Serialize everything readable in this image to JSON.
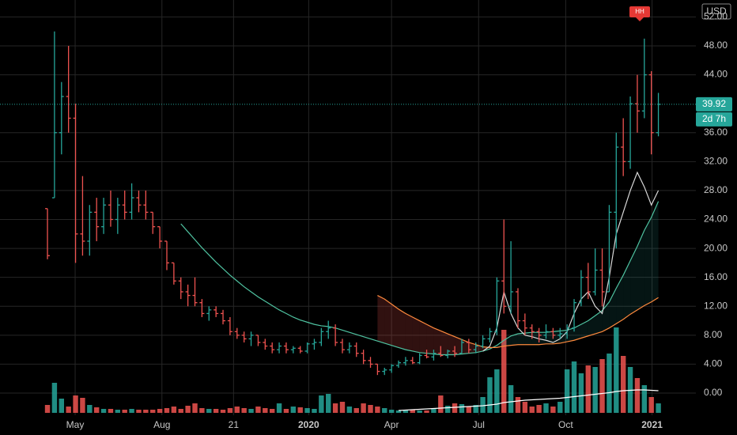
{
  "chart_data": {
    "type": "ohlc",
    "currency": "USD",
    "countdown": "2d 7h",
    "marker": "HH",
    "last_price": 39.92,
    "up_color": "#26a69a",
    "down_color": "#ef5350",
    "grid": true,
    "xlim": [
      -6.76,
      92.34
    ],
    "ylim": [
      -3.06,
      54.34
    ],
    "xticks": [
      {
        "value": 3.94,
        "label": "May"
      },
      {
        "value": 16.3,
        "label": "Aug"
      },
      {
        "value": 26.5,
        "label": "21"
      },
      {
        "value": 37.2,
        "label": "2020"
      },
      {
        "value": 49,
        "label": "Apr"
      },
      {
        "value": 61.4,
        "label": "Jul"
      },
      {
        "value": 73.8,
        "label": "Oct"
      },
      {
        "value": 86.1,
        "label": "2021"
      }
    ],
    "yticks": [
      {
        "value": 0,
        "label": "0.00"
      },
      {
        "value": 4,
        "label": "4.00"
      },
      {
        "value": 8,
        "label": "8.00"
      },
      {
        "value": 12,
        "label": "12.00"
      },
      {
        "value": 16,
        "label": "16.00"
      },
      {
        "value": 20,
        "label": "20.00"
      },
      {
        "value": 24,
        "label": "24.00"
      },
      {
        "value": 28,
        "label": "28.00"
      },
      {
        "value": 32,
        "label": "32.00"
      },
      {
        "value": 36,
        "label": "36.00"
      },
      {
        "value": 44,
        "label": "44.00"
      },
      {
        "value": 48,
        "label": "48.00"
      },
      {
        "value": 52,
        "label": "52.00"
      }
    ],
    "open": [
      25.5,
      27,
      36,
      41,
      38,
      22,
      21,
      25,
      23,
      26,
      24,
      26,
      25,
      27,
      26,
      25,
      23,
      21,
      18,
      15.5,
      14,
      13.5,
      12.5,
      11,
      11.5,
      11,
      10,
      8.5,
      8,
      7.5,
      8,
      7,
      6.5,
      6,
      6.5,
      6,
      6.2,
      5.8,
      6.8,
      7,
      8.5,
      9,
      7,
      6,
      6.5,
      5.5,
      4.5,
      4,
      3,
      3.2,
      3.8,
      4.2,
      4.5,
      4.2,
      5.2,
      5,
      5.5,
      5.2,
      5.8,
      5.5,
      7,
      6,
      6.5,
      7.5,
      8.5,
      15.5,
      12,
      14,
      10,
      9,
      8.5,
      8,
      8.5,
      8,
      8.2,
      9,
      12.5,
      16,
      14,
      17,
      14,
      25,
      34,
      32,
      40,
      39,
      44,
      36
    ],
    "high": [
      25.5,
      50,
      43,
      48,
      40,
      30,
      26,
      27,
      27,
      28,
      27,
      28,
      29,
      28,
      28,
      25,
      23,
      21,
      18,
      16,
      15,
      16,
      13,
      12,
      12,
      11.5,
      10.5,
      9,
      8.5,
      8.5,
      8,
      7.5,
      7,
      7,
      7,
      6.5,
      6.5,
      7,
      7.5,
      9,
      10,
      9.5,
      7.5,
      7,
      7,
      6,
      5,
      4,
      3.5,
      4,
      4.5,
      5,
      5,
      5.5,
      6,
      6,
      6.5,
      6,
      6.5,
      7.5,
      7.5,
      7,
      8,
      9,
      16,
      24,
      21,
      14.5,
      11,
      9.5,
      9,
      9.5,
      9,
      9,
      9.5,
      13,
      17,
      18,
      20,
      20,
      26,
      36,
      38,
      41,
      44,
      49,
      44.5,
      41.5
    ],
    "low": [
      18.5,
      27,
      33,
      36,
      18,
      19,
      19,
      21,
      22,
      23,
      22,
      24,
      24,
      25,
      24,
      22,
      20,
      17,
      15,
      13,
      12,
      12,
      10.5,
      10,
      10.5,
      9.5,
      8,
      7.5,
      7,
      6.5,
      6.5,
      6,
      5.5,
      5.5,
      5.5,
      5.5,
      5.5,
      5.5,
      6,
      6.5,
      7.5,
      6.5,
      5.5,
      5.5,
      5,
      4,
      3.5,
      2.5,
      2.5,
      2.8,
      3.5,
      3.8,
      4,
      4,
      4.8,
      4.5,
      5,
      4.8,
      5,
      5.5,
      5.5,
      5.5,
      6.2,
      7,
      8,
      11,
      11,
      9,
      8,
      7.5,
      7,
      7.5,
      7.5,
      7.5,
      7.5,
      8.5,
      12,
      13,
      13.5,
      12,
      14,
      20,
      30,
      31,
      36,
      38,
      33,
      35.5
    ],
    "close": [
      19,
      36,
      41,
      38,
      22,
      21,
      25,
      23,
      26,
      24,
      26,
      25,
      27,
      26,
      25,
      23,
      21,
      18,
      15.5,
      14,
      13.5,
      12.5,
      11,
      11.5,
      11,
      10,
      8.5,
      8,
      7.5,
      8,
      7,
      6.5,
      6,
      6.5,
      6,
      6.2,
      5.8,
      6.8,
      7,
      8.5,
      9,
      7,
      6,
      6.5,
      5.5,
      4.5,
      4,
      3,
      3.2,
      3.8,
      4.2,
      4.5,
      4.2,
      5.2,
      5,
      5.5,
      5.2,
      5.8,
      5.5,
      7,
      6,
      6.5,
      7.5,
      8.5,
      15.5,
      12,
      14,
      10,
      9,
      8.5,
      8,
      8.5,
      8,
      8.2,
      9,
      12.5,
      16,
      14,
      17,
      14,
      25,
      34,
      32,
      40,
      39,
      44,
      36,
      39.92
    ],
    "volume": [
      10,
      38,
      18,
      8,
      22,
      19,
      10,
      7,
      5,
      5,
      4,
      4,
      5,
      4,
      4,
      4,
      5,
      6,
      8,
      5,
      9,
      12,
      6,
      5,
      5,
      4,
      6,
      8,
      6,
      5,
      8,
      6,
      5,
      12,
      5,
      8,
      7,
      6,
      5,
      22,
      24,
      12,
      14,
      8,
      6,
      12,
      10,
      8,
      6,
      4,
      3,
      3,
      4,
      3,
      3,
      5,
      22,
      9,
      12,
      11,
      8,
      10,
      20,
      45,
      55,
      105,
      35,
      20,
      14,
      8,
      10,
      12,
      8,
      14,
      55,
      65,
      50,
      60,
      58,
      68,
      75,
      108,
      72,
      58,
      44,
      35,
      20,
      12
    ],
    "volume_ma": {
      "color": "#ffffff",
      "values": [
        null,
        null,
        null,
        null,
        null,
        null,
        null,
        null,
        null,
        null,
        null,
        null,
        null,
        null,
        null,
        null,
        null,
        null,
        null,
        null,
        null,
        null,
        null,
        null,
        null,
        null,
        null,
        null,
        null,
        null,
        null,
        null,
        null,
        null,
        null,
        null,
        null,
        null,
        null,
        null,
        null,
        null,
        null,
        null,
        null,
        null,
        null,
        null,
        null,
        null,
        3,
        3.5,
        4,
        4.5,
        5,
        5.5,
        6,
        6.5,
        7,
        7.5,
        8,
        8.5,
        9,
        10,
        11,
        13,
        14,
        15,
        16,
        16.5,
        17,
        17.5,
        18,
        18.5,
        19.5,
        20.5,
        21.5,
        22.5,
        23.5,
        24.5,
        25.5,
        27,
        28,
        28.5,
        29,
        29,
        28.5,
        28
      ]
    },
    "series": [
      {
        "color": "#4fc3a1",
        "values": [
          null,
          null,
          null,
          null,
          null,
          null,
          null,
          null,
          null,
          null,
          null,
          null,
          null,
          null,
          null,
          null,
          null,
          null,
          null,
          23.4,
          22.3,
          21.2,
          20.1,
          19.1,
          18.1,
          17.2,
          16.3,
          15.5,
          14.7,
          14,
          13.3,
          12.7,
          12.1,
          11.5,
          11,
          10.5,
          10.1,
          9.8,
          9.5,
          9.3,
          9.2,
          9,
          8.7,
          8.4,
          8.1,
          7.8,
          7.5,
          7.2,
          6.9,
          6.6,
          6.3,
          6,
          5.8,
          5.6,
          5.5,
          5.4,
          5.3,
          5.3,
          5.3,
          5.4,
          5.5,
          5.6,
          5.8,
          6.1,
          6.6,
          7.3,
          7.9,
          8.2,
          8.3,
          8.4,
          8.4,
          8.4,
          8.5,
          8.6,
          8.7,
          9,
          9.5,
          10,
          10.7,
          11.4,
          12.6,
          14.5,
          16.3,
          18.3,
          20.3,
          22.5,
          24.3,
          26.5
        ]
      },
      {
        "color": "#ff8a3d",
        "values": [
          null,
          null,
          null,
          null,
          null,
          null,
          null,
          null,
          null,
          null,
          null,
          null,
          null,
          null,
          null,
          null,
          null,
          null,
          null,
          null,
          null,
          null,
          null,
          null,
          null,
          null,
          null,
          null,
          null,
          null,
          null,
          null,
          null,
          null,
          null,
          null,
          null,
          null,
          null,
          null,
          null,
          null,
          null,
          null,
          null,
          null,
          null,
          13.5,
          13,
          12.3,
          11.6,
          11,
          10.5,
          10,
          9.5,
          9,
          8.6,
          8.2,
          7.8,
          7.4,
          7,
          6.7,
          6.4,
          6.3,
          6.3,
          6.5,
          6.6,
          6.7,
          6.7,
          6.7,
          6.7,
          6.8,
          6.8,
          6.9,
          7.1,
          7.3,
          7.6,
          7.9,
          8.2,
          8.5,
          9,
          9.6,
          10.2,
          10.9,
          11.5,
          12.1,
          12.6,
          13.2
        ]
      },
      {
        "color": "#d8d8d8",
        "values": [
          null,
          null,
          null,
          null,
          null,
          null,
          null,
          null,
          null,
          null,
          null,
          null,
          null,
          null,
          null,
          null,
          null,
          null,
          null,
          null,
          null,
          null,
          null,
          null,
          null,
          null,
          null,
          null,
          null,
          null,
          null,
          null,
          null,
          null,
          null,
          null,
          null,
          null,
          null,
          null,
          null,
          null,
          null,
          null,
          null,
          null,
          null,
          null,
          null,
          null,
          null,
          null,
          null,
          null,
          null,
          null,
          null,
          null,
          null,
          null,
          null,
          null,
          5.8,
          6.5,
          9,
          14,
          11,
          9,
          8,
          7.8,
          7.5,
          7.3,
          7,
          7.5,
          8.5,
          11,
          13,
          14,
          12,
          11,
          16,
          22,
          25,
          28,
          30.5,
          28.5,
          26,
          28
        ]
      }
    ]
  }
}
